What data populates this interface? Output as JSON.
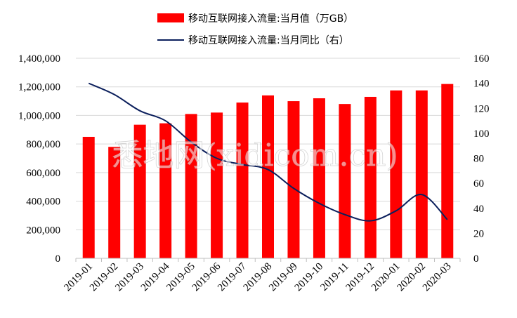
{
  "watermark": "悉地网(xidicom.cn)",
  "colors": {
    "bar": "#ff0000",
    "line": "#0b1f5c",
    "grid": "#d9d9d9",
    "axis": "#bfbfbf"
  },
  "chart_data": {
    "type": "bar",
    "categories": [
      "2019-01",
      "2019-02",
      "2019-03",
      "2019-04",
      "2019-05",
      "2019-06",
      "2019-07",
      "2019-08",
      "2019-09",
      "2019-10",
      "2019-11",
      "2019-12",
      "2020-01",
      "2020-02",
      "2020-03"
    ],
    "series": [
      {
        "name": "移动互联网接入流量:当月值（万GB）",
        "type": "bar",
        "axis": "left",
        "values": [
          850000,
          780000,
          935000,
          945000,
          1010000,
          1020000,
          1090000,
          1140000,
          1100000,
          1120000,
          1080000,
          1130000,
          1175000,
          1175000,
          1220000
        ]
      },
      {
        "name": "移动互联网接入流量:当月同比（右）",
        "type": "line",
        "axis": "right",
        "values": [
          140,
          131,
          118,
          110,
          93,
          80,
          75,
          71,
          56,
          44,
          35,
          30,
          38,
          51,
          31
        ]
      }
    ],
    "y_left": {
      "range": [
        0,
        1400000
      ],
      "ticks": [
        "0",
        "200,000",
        "400,000",
        "600,000",
        "800,000",
        "1,000,000",
        "1,200,000",
        "1,400,000"
      ]
    },
    "y_right": {
      "range": [
        0,
        160
      ],
      "ticks": [
        "0",
        "20",
        "40",
        "60",
        "80",
        "100",
        "120",
        "140",
        "160"
      ]
    },
    "legend_position": "top-center",
    "grid": true
  }
}
